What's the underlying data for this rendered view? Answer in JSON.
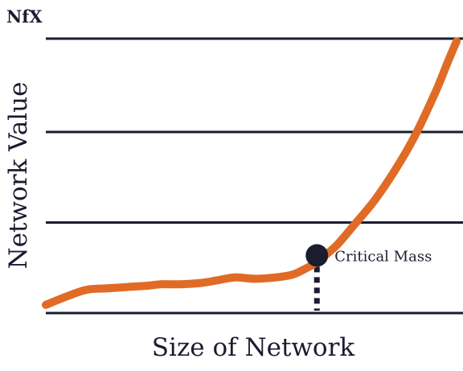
{
  "brand": {
    "logo_text": "NfX"
  },
  "chart_data": {
    "type": "line",
    "xlabel": "Size of Network",
    "ylabel": "Network Value",
    "grid": true,
    "gridlines_y": [
      0,
      33,
      66,
      100
    ],
    "xlim": [
      0,
      100
    ],
    "ylim": [
      0,
      100
    ],
    "series": [
      {
        "color": "#e06b26",
        "points": [
          [
            0,
            3
          ],
          [
            5,
            6
          ],
          [
            10,
            8.5
          ],
          [
            15,
            9
          ],
          [
            20,
            9.5
          ],
          [
            25,
            10
          ],
          [
            28,
            10.5
          ],
          [
            33,
            10.5
          ],
          [
            38,
            11
          ],
          [
            42,
            12
          ],
          [
            46,
            13
          ],
          [
            51,
            12.5
          ],
          [
            56,
            13
          ],
          [
            60,
            14
          ],
          [
            63,
            16
          ],
          [
            66,
            18.5
          ],
          [
            68,
            21
          ],
          [
            71,
            25
          ],
          [
            75,
            32
          ],
          [
            80,
            41
          ],
          [
            85,
            52
          ],
          [
            90,
            65
          ],
          [
            95,
            81
          ],
          [
            98,
            92
          ],
          [
            100,
            99
          ]
        ]
      }
    ],
    "annotations": [
      {
        "label": "Critical Mass",
        "x": 66,
        "y": 21,
        "marker": "point",
        "dotted_line_to_axis": true,
        "marker_color": "#1b1c30"
      }
    ],
    "axis_color": "#1b1c30"
  }
}
